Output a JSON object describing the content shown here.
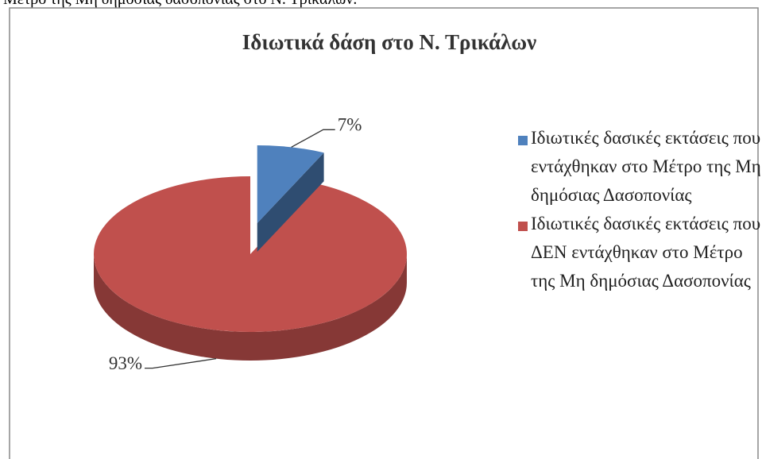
{
  "caption_fragment": "Μέτρο της Μη δημόσιας δασοπονίας στο Ν. Τρικάλων.",
  "chart_data": {
    "type": "pie",
    "title": "Ιδιωτικά δάση στο Ν. Τρικάλων",
    "categories": [
      "Ιδιωτικές δασικές εκτάσεις που εντάχθηκαν στο Μέτρο της Μη δημόσιας Δασοπονίας",
      "Ιδιωτικές δασικές εκτάσεις που ΔΕΝ εντάχθηκαν στο Μέτρο της Μη δημόσιας Δασοπονίας"
    ],
    "values": [
      7,
      93
    ],
    "value_labels": [
      "7%",
      "93%"
    ],
    "colors": [
      "#4f81bd",
      "#c0504d"
    ],
    "legend": "right"
  }
}
